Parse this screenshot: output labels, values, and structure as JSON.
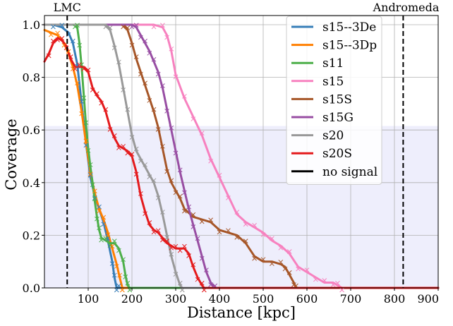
{
  "chart_data": {
    "type": "line",
    "xlabel": "Distance [kpc]",
    "ylabel": "Coverage",
    "xlim": [
      0,
      900
    ],
    "ylim": [
      0,
      1.02
    ],
    "xticks": [
      100,
      200,
      300,
      400,
      500,
      600,
      700,
      800,
      900
    ],
    "xtick_labels": [
      "100",
      "200",
      "300",
      "400",
      "500",
      "600",
      "700",
      "800",
      "900"
    ],
    "yticks": [
      0.0,
      0.2,
      0.4,
      0.6,
      0.8,
      1.0
    ],
    "ytick_labels": [
      "0.0",
      "0.2",
      "0.4",
      "0.6",
      "0.8",
      "1.0"
    ],
    "grid": true,
    "legend_position": "top-right",
    "shaded_band": {
      "y0": 0.0,
      "y1": 0.615,
      "color": "#eeeefc"
    },
    "reference_lines": [
      {
        "x": 52,
        "label": "LMC",
        "style": "dashed"
      },
      {
        "x": 820,
        "label": "Andromeda",
        "style": "dashed"
      }
    ],
    "series": [
      {
        "name": "s15--3De",
        "color": "#377eb8",
        "x": [
          0,
          20,
          40,
          55,
          65,
          75,
          85,
          95,
          105,
          115,
          125,
          135,
          145,
          155,
          160,
          165,
          170,
          900
        ],
        "y": [
          1.0,
          1.0,
          0.99,
          0.97,
          0.93,
          0.85,
          0.7,
          0.55,
          0.42,
          0.35,
          0.3,
          0.25,
          0.18,
          0.1,
          0.04,
          0.0,
          0.0,
          0.0
        ]
      },
      {
        "name": "s15--3Dp",
        "color": "#ff7f00",
        "x": [
          0,
          15,
          30,
          45,
          55,
          65,
          75,
          85,
          95,
          105,
          115,
          125,
          135,
          145,
          155,
          165,
          172,
          178,
          900
        ],
        "y": [
          0.98,
          0.97,
          0.96,
          0.93,
          0.89,
          0.84,
          0.77,
          0.67,
          0.55,
          0.44,
          0.36,
          0.3,
          0.26,
          0.21,
          0.15,
          0.09,
          0.04,
          0.0,
          0.0
        ]
      },
      {
        "name": "s11",
        "color": "#4daf4a",
        "x": [
          0,
          70,
          75,
          80,
          85,
          90,
          95,
          100,
          105,
          110,
          115,
          120,
          125,
          130,
          140,
          150,
          160,
          170,
          180,
          185,
          190,
          195,
          900
        ],
        "y": [
          1.0,
          1.0,
          0.99,
          0.93,
          0.84,
          0.73,
          0.62,
          0.53,
          0.46,
          0.4,
          0.33,
          0.27,
          0.22,
          0.19,
          0.18,
          0.17,
          0.17,
          0.15,
          0.1,
          0.05,
          0.01,
          0.0,
          0.0
        ]
      },
      {
        "name": "s15",
        "color": "#f781bf",
        "x": [
          0,
          250,
          270,
          280,
          290,
          300,
          320,
          340,
          360,
          380,
          400,
          420,
          440,
          460,
          480,
          500,
          520,
          540,
          560,
          580,
          600,
          620,
          640,
          660,
          670,
          680,
          900
        ],
        "y": [
          1.0,
          1.0,
          0.99,
          0.96,
          0.9,
          0.81,
          0.72,
          0.65,
          0.58,
          0.49,
          0.42,
          0.35,
          0.28,
          0.25,
          0.23,
          0.21,
          0.18,
          0.16,
          0.13,
          0.08,
          0.06,
          0.04,
          0.02,
          0.02,
          0.01,
          0.0,
          0.0
        ]
      },
      {
        "name": "s15S",
        "color": "#a65628",
        "x": [
          0,
          180,
          190,
          200,
          210,
          220,
          230,
          240,
          250,
          260,
          270,
          280,
          290,
          300,
          310,
          320,
          340,
          360,
          380,
          400,
          420,
          440,
          460,
          480,
          500,
          520,
          540,
          550,
          560,
          570,
          575,
          900
        ],
        "y": [
          1.0,
          1.0,
          0.98,
          0.93,
          0.87,
          0.82,
          0.77,
          0.72,
          0.67,
          0.61,
          0.53,
          0.45,
          0.4,
          0.37,
          0.34,
          0.3,
          0.27,
          0.26,
          0.25,
          0.22,
          0.21,
          0.2,
          0.17,
          0.12,
          0.1,
          0.1,
          0.09,
          0.08,
          0.05,
          0.02,
          0.0,
          0.0
        ]
      },
      {
        "name": "s15G",
        "color": "#984ea3",
        "x": [
          0,
          200,
          210,
          220,
          230,
          240,
          250,
          260,
          270,
          280,
          290,
          300,
          310,
          320,
          330,
          340,
          350,
          360,
          370,
          380,
          390,
          900
        ],
        "y": [
          1.0,
          1.0,
          0.99,
          0.96,
          0.93,
          0.9,
          0.86,
          0.82,
          0.76,
          0.68,
          0.6,
          0.52,
          0.44,
          0.37,
          0.3,
          0.24,
          0.18,
          0.12,
          0.06,
          0.02,
          0.0,
          0.0
        ]
      },
      {
        "name": "s20",
        "color": "#999999",
        "x": [
          0,
          140,
          150,
          160,
          170,
          180,
          190,
          200,
          210,
          220,
          230,
          240,
          250,
          260,
          270,
          280,
          290,
          300,
          310,
          315,
          900
        ],
        "y": [
          1.0,
          1.0,
          0.98,
          0.92,
          0.85,
          0.76,
          0.67,
          0.58,
          0.52,
          0.49,
          0.46,
          0.43,
          0.4,
          0.35,
          0.28,
          0.2,
          0.12,
          0.06,
          0.01,
          0.0,
          0.0
        ]
      },
      {
        "name": "s20S",
        "color": "#e41a1c",
        "x": [
          0,
          10,
          20,
          30,
          40,
          50,
          60,
          70,
          80,
          90,
          100,
          110,
          120,
          130,
          140,
          150,
          160,
          170,
          180,
          190,
          200,
          210,
          220,
          230,
          240,
          250,
          260,
          270,
          280,
          290,
          300,
          310,
          320,
          330,
          340,
          350,
          360,
          365,
          900
        ],
        "y": [
          0.86,
          0.89,
          0.93,
          0.95,
          0.94,
          0.92,
          0.87,
          0.84,
          0.84,
          0.84,
          0.82,
          0.76,
          0.73,
          0.71,
          0.67,
          0.61,
          0.57,
          0.54,
          0.53,
          0.52,
          0.5,
          0.44,
          0.35,
          0.29,
          0.24,
          0.22,
          0.21,
          0.19,
          0.17,
          0.16,
          0.15,
          0.15,
          0.15,
          0.13,
          0.08,
          0.04,
          0.01,
          0.0,
          0.0
        ]
      }
    ],
    "legend_extra": [
      {
        "name": "no signal",
        "color": "#000000"
      }
    ]
  }
}
